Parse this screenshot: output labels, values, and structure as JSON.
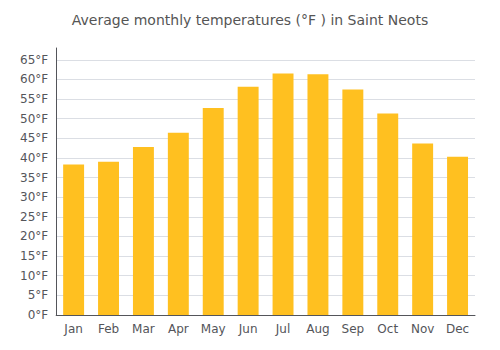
{
  "chart_data": {
    "type": "bar",
    "title": "Average monthly temperatures (°F ) in Saint Neots",
    "categories": [
      "Jan",
      "Feb",
      "Mar",
      "Apr",
      "May",
      "Jun",
      "Jul",
      "Aug",
      "Sep",
      "Oct",
      "Nov",
      "Dec"
    ],
    "values": [
      38.3,
      39.0,
      42.8,
      46.4,
      52.7,
      58.1,
      61.5,
      61.3,
      57.4,
      51.3,
      43.7,
      40.3
    ],
    "color": "#FFC020",
    "ylim": [
      0,
      68
    ],
    "yticks": [
      {
        "value": 0,
        "label": "0°F"
      },
      {
        "value": 5,
        "label": "5°F"
      },
      {
        "value": 10,
        "label": "10°F"
      },
      {
        "value": 15,
        "label": "15°F"
      },
      {
        "value": 20,
        "label": "20°F"
      },
      {
        "value": 25,
        "label": "25°F"
      },
      {
        "value": 30,
        "label": "30°F"
      },
      {
        "value": 35,
        "label": "35°F"
      },
      {
        "value": 40,
        "label": "40°F"
      },
      {
        "value": 45,
        "label": "45°F"
      },
      {
        "value": 50,
        "label": "50°F"
      },
      {
        "value": 55,
        "label": "55°F"
      },
      {
        "value": 60,
        "label": "60°F"
      },
      {
        "value": 65,
        "label": "65°F"
      }
    ],
    "grid": true
  }
}
